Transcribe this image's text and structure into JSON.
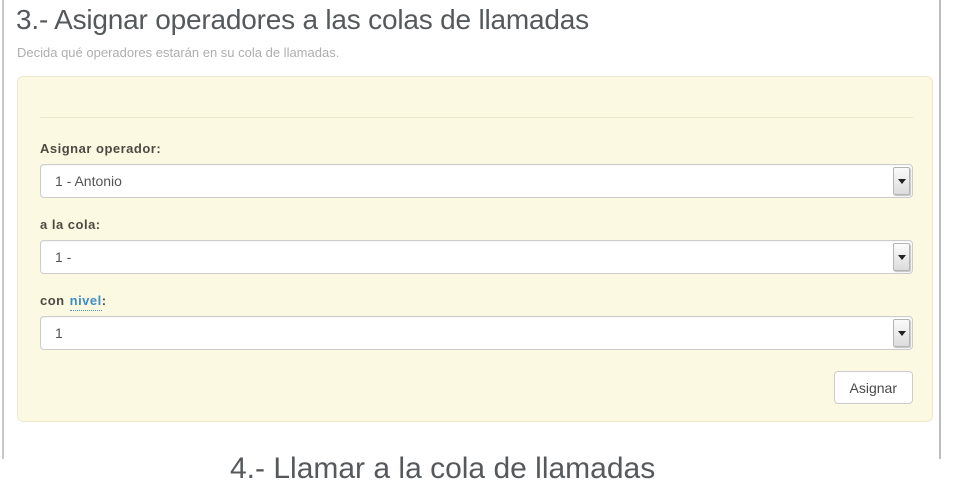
{
  "colors": {
    "panel_background": "#fcf9e2",
    "panel_border": "#f0e9d0",
    "link_blue": "#3e8dc5",
    "title_gray": "#55595c",
    "label_gray": "#4e4a43"
  },
  "header": {
    "title": "3.- Asignar operadores a las colas de llamadas",
    "subtitle": "Decida qué operadores estarán en su cola de llamadas."
  },
  "form": {
    "fields": [
      {
        "label": "Asignar operador:",
        "value": "1 - Antonio"
      },
      {
        "label": "a la cola:",
        "value": "1 -"
      },
      {
        "label_prefix": "con",
        "link_text": "nivel",
        "label_suffix": ":",
        "value": "1"
      }
    ],
    "submit_label": "Asignar"
  },
  "footer": {
    "clipped_next_title": "4.- Llamar a la cola de llamadas"
  }
}
